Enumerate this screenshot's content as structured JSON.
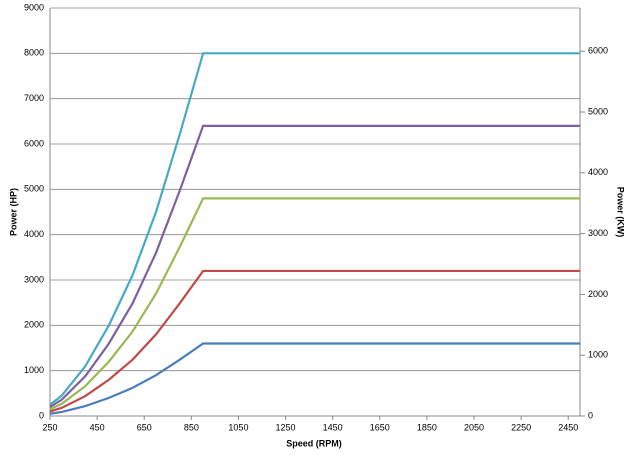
{
  "chart_data": {
    "type": "line",
    "x_label": "Speed (RPM)",
    "y_label": "Power (HP)",
    "y2_label": "Power (KW)",
    "x": [
      250,
      300,
      400,
      500,
      600,
      700,
      800,
      900,
      2500
    ],
    "series": [
      {
        "color": "#4a7ebb",
        "values": [
          50,
          90,
          220,
          400,
          620,
          900,
          1240,
          1600,
          1600
        ]
      },
      {
        "color": "#be4b48",
        "values": [
          100,
          180,
          440,
          800,
          1240,
          1800,
          2480,
          3200,
          3200
        ]
      },
      {
        "color": "#98b954",
        "values": [
          150,
          270,
          660,
          1200,
          1860,
          2700,
          3720,
          4800,
          4800
        ]
      },
      {
        "color": "#7d60a0",
        "values": [
          200,
          360,
          880,
          1600,
          2480,
          3600,
          4960,
          6400,
          6400
        ]
      },
      {
        "color": "#46aac5",
        "values": [
          250,
          450,
          1100,
          2000,
          3100,
          4500,
          6200,
          8000,
          8000
        ]
      }
    ],
    "xlim": [
      250,
      2500
    ],
    "xticks": [
      250,
      450,
      650,
      850,
      1050,
      1250,
      1450,
      1650,
      1850,
      2050,
      2250,
      2450
    ],
    "ylim": [
      0,
      9000
    ],
    "yticks": [
      0,
      1000,
      2000,
      3000,
      4000,
      5000,
      6000,
      7000,
      8000,
      9000
    ],
    "y2lim": [
      0,
      6711
    ],
    "y2ticks": [
      0,
      1000,
      2000,
      3000,
      4000,
      5000,
      6000
    ],
    "grid": true
  }
}
